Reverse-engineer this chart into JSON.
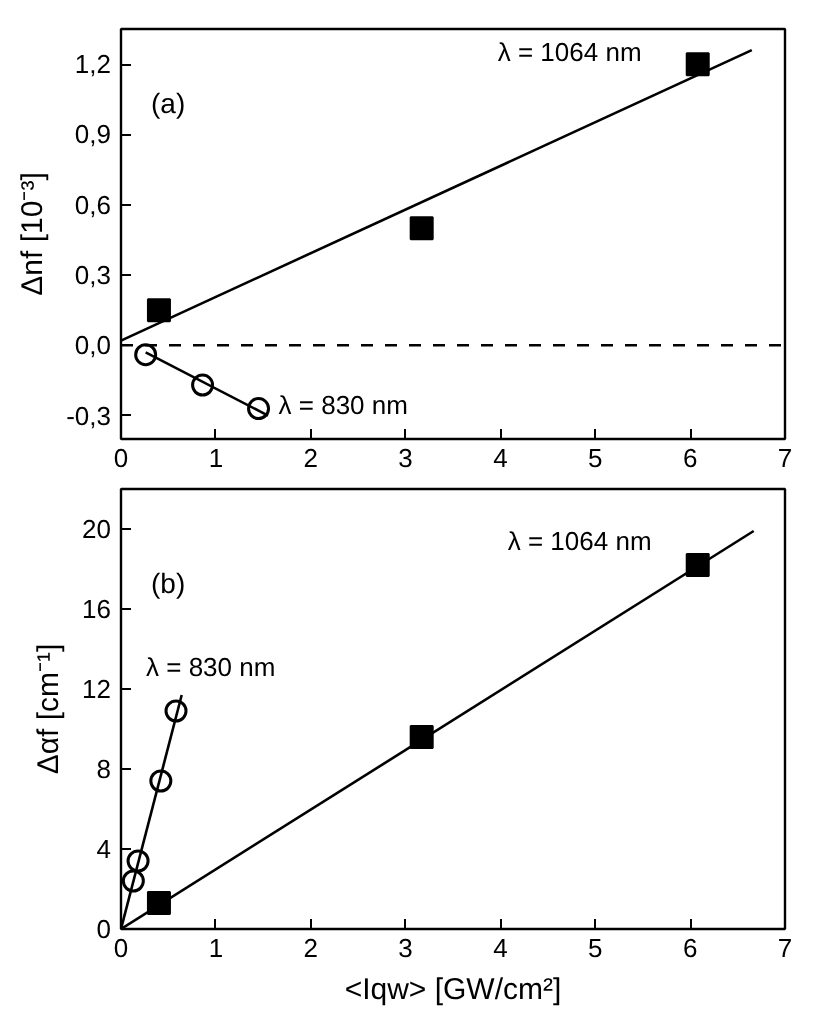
{
  "chart_data": [
    {
      "type": "scatter",
      "annotations": [
        "(a)"
      ],
      "ylabel": "Δnf [10⁻³]",
      "xlim": [
        0,
        7
      ],
      "ylim": [
        -0.4,
        1.35
      ],
      "xticks": [
        0,
        1,
        2,
        3,
        4,
        5,
        6,
        7
      ],
      "yticks": [
        {
          "value": -0.3,
          "label": "-0,3"
        },
        {
          "value": 0,
          "label": "0,0"
        },
        {
          "value": 0.3,
          "label": "0,3"
        },
        {
          "value": 0.6,
          "label": "0,6"
        },
        {
          "value": 0.9,
          "label": "0,9"
        },
        {
          "value": 1.2,
          "label": "1,2"
        }
      ],
      "grid": false,
      "ref_lines": [
        {
          "axis": "y",
          "value": 0,
          "color": "#000000",
          "line_style": "dashed"
        }
      ],
      "series": [
        {
          "name": "λ = 1064 nm",
          "marker": "square",
          "color": "#000000",
          "x": [
            0.4,
            3.17,
            6.08
          ],
          "values": [
            0.15,
            0.5,
            1.2
          ]
        },
        {
          "type": "line",
          "color": "#000000",
          "marker": "none",
          "x": [
            0,
            6.65
          ],
          "values": [
            0.02,
            1.26
          ]
        },
        {
          "name": "λ = 830 nm",
          "marker": "circle",
          "color": "#000000",
          "x": [
            0.26,
            0.86,
            1.45
          ],
          "values": [
            -0.04,
            -0.17,
            -0.27
          ]
        },
        {
          "type": "line",
          "color": "#000000",
          "marker": "none",
          "x": [
            0.26,
            1.55
          ],
          "values": [
            -0.03,
            -0.3
          ]
        }
      ]
    },
    {
      "type": "scatter",
      "annotations": [
        "(b)"
      ],
      "xlabel": "<Iqw> [GW/cm²]",
      "ylabel": "Δαf [cm⁻¹]",
      "xlim": [
        0,
        7
      ],
      "ylim": [
        0,
        22
      ],
      "xticks": [
        0,
        1,
        2,
        3,
        4,
        5,
        6,
        7
      ],
      "yticks": [
        0,
        4,
        8,
        12,
        16,
        20
      ],
      "grid": false,
      "series": [
        {
          "name": "λ = 1064 nm",
          "marker": "square",
          "color": "#000000",
          "x": [
            0.4,
            3.17,
            6.08
          ],
          "values": [
            1.3,
            9.6,
            18.2
          ]
        },
        {
          "type": "line",
          "color": "#000000",
          "marker": "none",
          "x": [
            0,
            6.67
          ],
          "values": [
            0,
            19.9
          ]
        },
        {
          "name": "λ = 830 nm",
          "marker": "circle",
          "color": "#000000",
          "x": [
            0.13,
            0.18,
            0.42,
            0.58
          ],
          "values": [
            2.4,
            3.4,
            7.4,
            10.9
          ]
        },
        {
          "type": "line",
          "color": "#000000",
          "marker": "none",
          "x": [
            0,
            0.64
          ],
          "values": [
            0,
            11.7
          ]
        }
      ]
    }
  ]
}
